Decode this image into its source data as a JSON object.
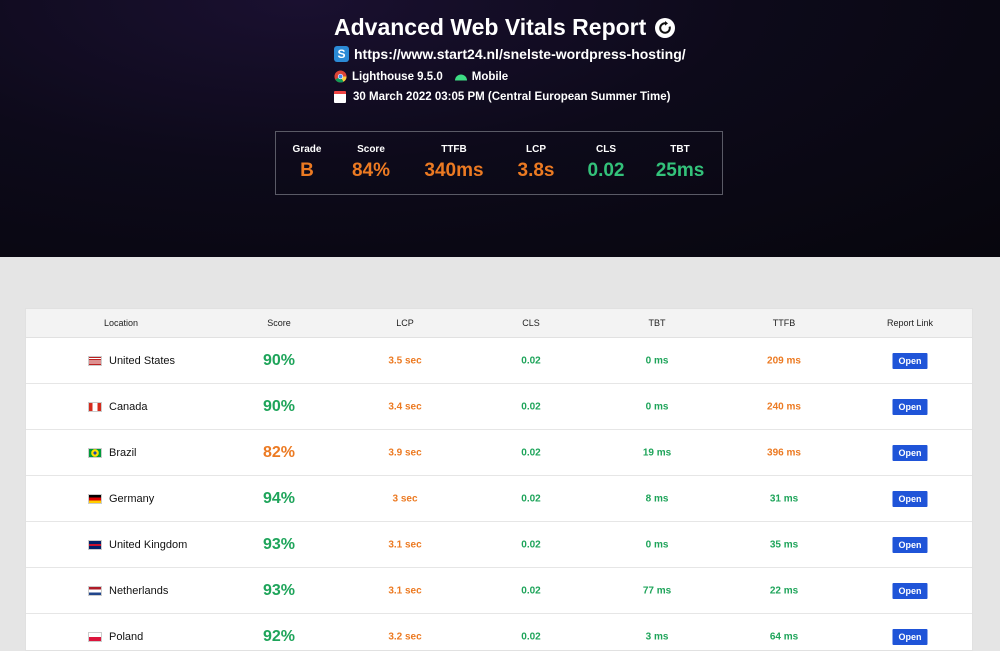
{
  "report": {
    "title": "Advanced Web Vitals Report",
    "url": "https://www.start24.nl/snelste-wordpress-hosting/",
    "lighthouse": "Lighthouse 9.5.0",
    "device": "Mobile",
    "date": "30 March 2022 03:05 PM (Central European Summer Time)"
  },
  "summary": [
    {
      "label": "Grade",
      "value": "B",
      "color": "orange"
    },
    {
      "label": "Score",
      "value": "84%",
      "color": "orange"
    },
    {
      "label": "TTFB",
      "value": "340ms",
      "color": "orange"
    },
    {
      "label": "LCP",
      "value": "3.8s",
      "color": "orange"
    },
    {
      "label": "CLS",
      "value": "0.02",
      "color": "green"
    },
    {
      "label": "TBT",
      "value": "25ms",
      "color": "green"
    }
  ],
  "table": {
    "headers": [
      "Location",
      "Score",
      "LCP",
      "CLS",
      "TBT",
      "TTFB",
      "Report Link"
    ],
    "open_label": "Open",
    "rows": [
      {
        "country": "United States",
        "flag": "us",
        "score": "90%",
        "score_color": "green",
        "lcp": "3.5 sec",
        "lcp_color": "orange",
        "cls": "0.02",
        "tbt": "0 ms",
        "ttfb": "209 ms",
        "ttfb_color": "orange"
      },
      {
        "country": "Canada",
        "flag": "ca",
        "score": "90%",
        "score_color": "green",
        "lcp": "3.4 sec",
        "lcp_color": "orange",
        "cls": "0.02",
        "tbt": "0 ms",
        "ttfb": "240 ms",
        "ttfb_color": "orange"
      },
      {
        "country": "Brazil",
        "flag": "br",
        "score": "82%",
        "score_color": "orange",
        "lcp": "3.9 sec",
        "lcp_color": "orange",
        "cls": "0.02",
        "tbt": "19 ms",
        "ttfb": "396 ms",
        "ttfb_color": "orange"
      },
      {
        "country": "Germany",
        "flag": "de",
        "score": "94%",
        "score_color": "green",
        "lcp": "3 sec",
        "lcp_color": "orange",
        "cls": "0.02",
        "tbt": "8 ms",
        "ttfb": "31 ms",
        "ttfb_color": "green"
      },
      {
        "country": "United Kingdom",
        "flag": "gb",
        "score": "93%",
        "score_color": "green",
        "lcp": "3.1 sec",
        "lcp_color": "orange",
        "cls": "0.02",
        "tbt": "0 ms",
        "ttfb": "35 ms",
        "ttfb_color": "green"
      },
      {
        "country": "Netherlands",
        "flag": "nl",
        "score": "93%",
        "score_color": "green",
        "lcp": "3.1 sec",
        "lcp_color": "orange",
        "cls": "0.02",
        "tbt": "77 ms",
        "ttfb": "22 ms",
        "ttfb_color": "green"
      },
      {
        "country": "Poland",
        "flag": "pl",
        "score": "92%",
        "score_color": "green",
        "lcp": "3.2 sec",
        "lcp_color": "orange",
        "cls": "0.02",
        "tbt": "3 ms",
        "ttfb": "64 ms",
        "ttfb_color": "green"
      }
    ]
  },
  "colors": {
    "orange": "#ec7a22",
    "green": "#1ea45a",
    "button": "#1f54d8"
  }
}
